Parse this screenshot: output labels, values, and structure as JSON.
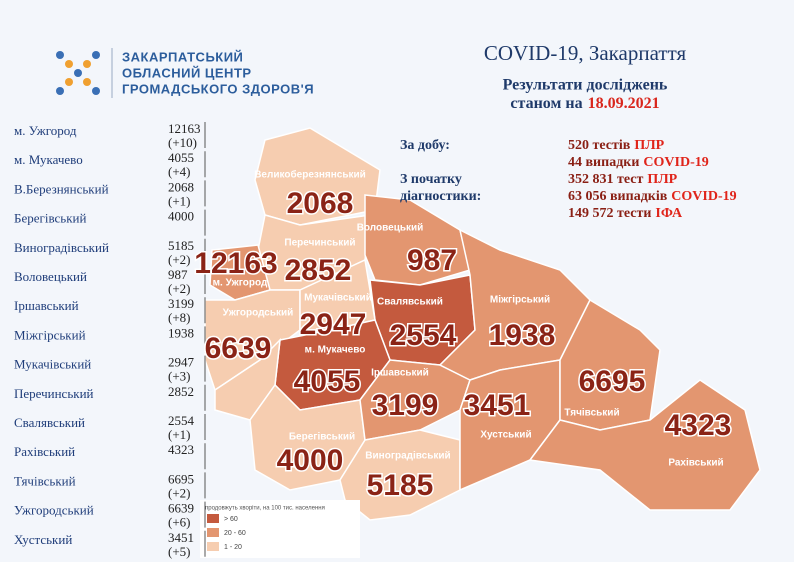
{
  "header": {
    "org": [
      "ЗАКАРПАТСЬКИЙ",
      "ОБЛАСНИЙ ЦЕНТР",
      "ГРОМАДСЬКОГО ЗДОРОВ'Я"
    ],
    "title": "COVID-19, Закарпаття",
    "subtitle": "Результати досліджень",
    "date_prefix": "станом на",
    "date": "18.09.2021"
  },
  "table": {
    "rows": [
      {
        "name": "м. Ужгород",
        "count": "12163",
        "delta": "(+10)"
      },
      {
        "name": "м. Мукачево",
        "count": "4055",
        "delta": "(+4)"
      },
      {
        "name": "В.Березнянський",
        "count": "2068",
        "delta": "(+1)"
      },
      {
        "name": "Берегівський",
        "count": "4000"
      },
      {
        "name": "Виноградівський",
        "count": "5185",
        "delta": "(+2)"
      },
      {
        "name": "Воловецький",
        "count": "987",
        "delta": "(+2)"
      },
      {
        "name": "Іршавський",
        "count": "3199",
        "delta": "(+8)"
      },
      {
        "name": "Міжгірський",
        "count": "1938"
      },
      {
        "name": "Мукачівський",
        "count": "2947",
        "delta": "(+3)"
      },
      {
        "name": "Перечинський",
        "count": "2852"
      },
      {
        "name": "Свалявський",
        "count": "2554",
        "delta": "(+1)"
      },
      {
        "name": "Рахівський",
        "count": "4323"
      },
      {
        "name": "Тячівський",
        "count": "6695",
        "delta": "(+2)"
      },
      {
        "name": "Ужгородський",
        "count": "6639",
        "delta": "(+6)"
      },
      {
        "name": "Хустський",
        "count": "3451",
        "delta": "(+5)"
      }
    ]
  },
  "stats": {
    "daily": {
      "label": "За добу:",
      "lines": [
        {
          "text": "520 тестів",
          "tag": "ПЛР"
        },
        {
          "text": "44 випадки",
          "tag": "COVID-19"
        }
      ]
    },
    "total": {
      "label": [
        "З початку",
        "діагностики:"
      ],
      "lines": [
        {
          "text": "352 831 тест",
          "tag": "ПЛР"
        },
        {
          "text": "63 056 випадків",
          "tag": "COVID-19"
        },
        {
          "text": "149 572 тести",
          "tag": "ІФА"
        }
      ]
    }
  },
  "map": {
    "districts": [
      {
        "name": "Великоберезнянський",
        "count": "2068"
      },
      {
        "name": "м. Ужгород",
        "count": "12163"
      },
      {
        "name": "Перечинський",
        "count": "2852"
      },
      {
        "name": "Воловецький",
        "count": "987"
      },
      {
        "name": "Мукачівський",
        "count": "2947"
      },
      {
        "name": "Свалявський",
        "count": "2554"
      },
      {
        "name": "Ужгородський",
        "count": "6639"
      },
      {
        "name": "м. Мукачево",
        "count": "4055"
      },
      {
        "name": "Міжгірський",
        "count": "1938"
      },
      {
        "name": "Іршавський",
        "count": "3199"
      },
      {
        "name": "Хустський",
        "count": "3451"
      },
      {
        "name": "Тячівський",
        "count": "6695"
      },
      {
        "name": "Берегівський",
        "count": "4000"
      },
      {
        "name": "Виноградівський",
        "count": "5185"
      },
      {
        "name": "Рахівський",
        "count": "4323"
      }
    ]
  },
  "legend": {
    "title": "продовжуть хворіти, на 100 тис. населення",
    "items": [
      "> 60",
      "20 - 60",
      "1 - 20"
    ]
  }
}
